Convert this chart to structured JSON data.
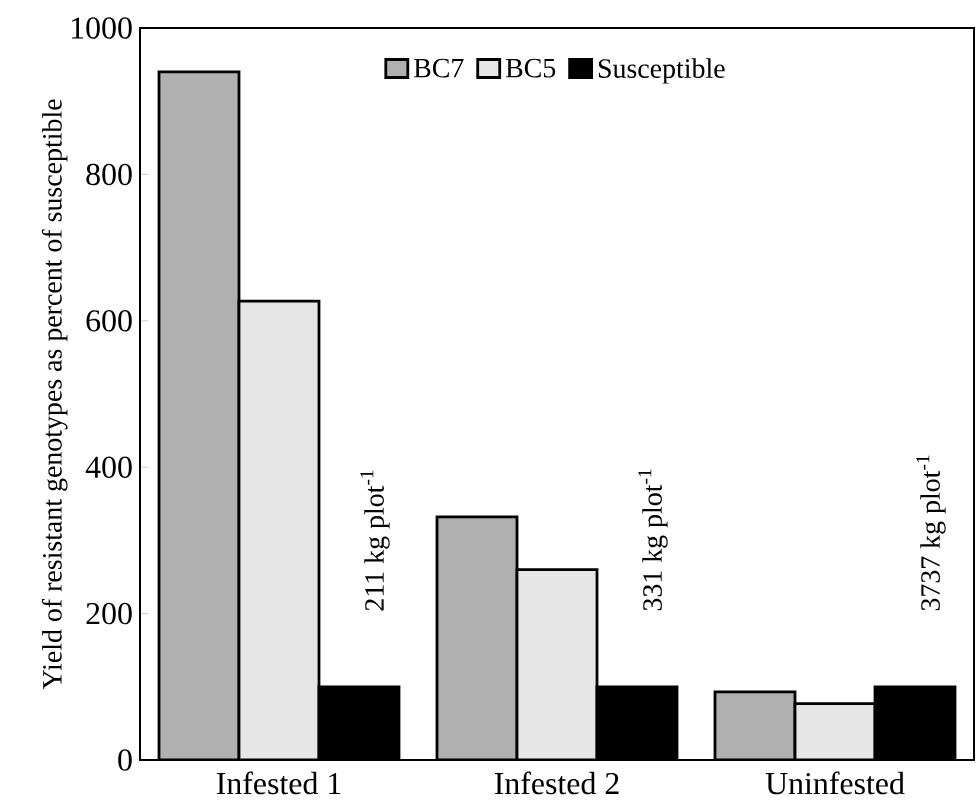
{
  "chart_data": {
    "type": "bar",
    "ylabel": "Yield of resistant genotypes as percent of susceptible",
    "categories": [
      "Infested 1",
      "Infested 2",
      "Uninfested"
    ],
    "series": [
      {
        "name": "BC7",
        "color": "#b0b0b0",
        "values": [
          940,
          332,
          93
        ]
      },
      {
        "name": "BC5",
        "color": "#e6e6e6",
        "values": [
          627,
          260,
          77
        ]
      },
      {
        "name": "Susceptible",
        "color": "#000000",
        "values": [
          100,
          100,
          100
        ]
      }
    ],
    "ylim": [
      0,
      1000
    ],
    "yticks": [
      0,
      200,
      400,
      600,
      800,
      1000
    ],
    "legend": "top",
    "grid": false,
    "annotations": [
      "211 kg  plot$^{-1}$",
      "331 kg  plot$^{-1}$",
      "3737 kg  plot$^{-1}$"
    ]
  }
}
